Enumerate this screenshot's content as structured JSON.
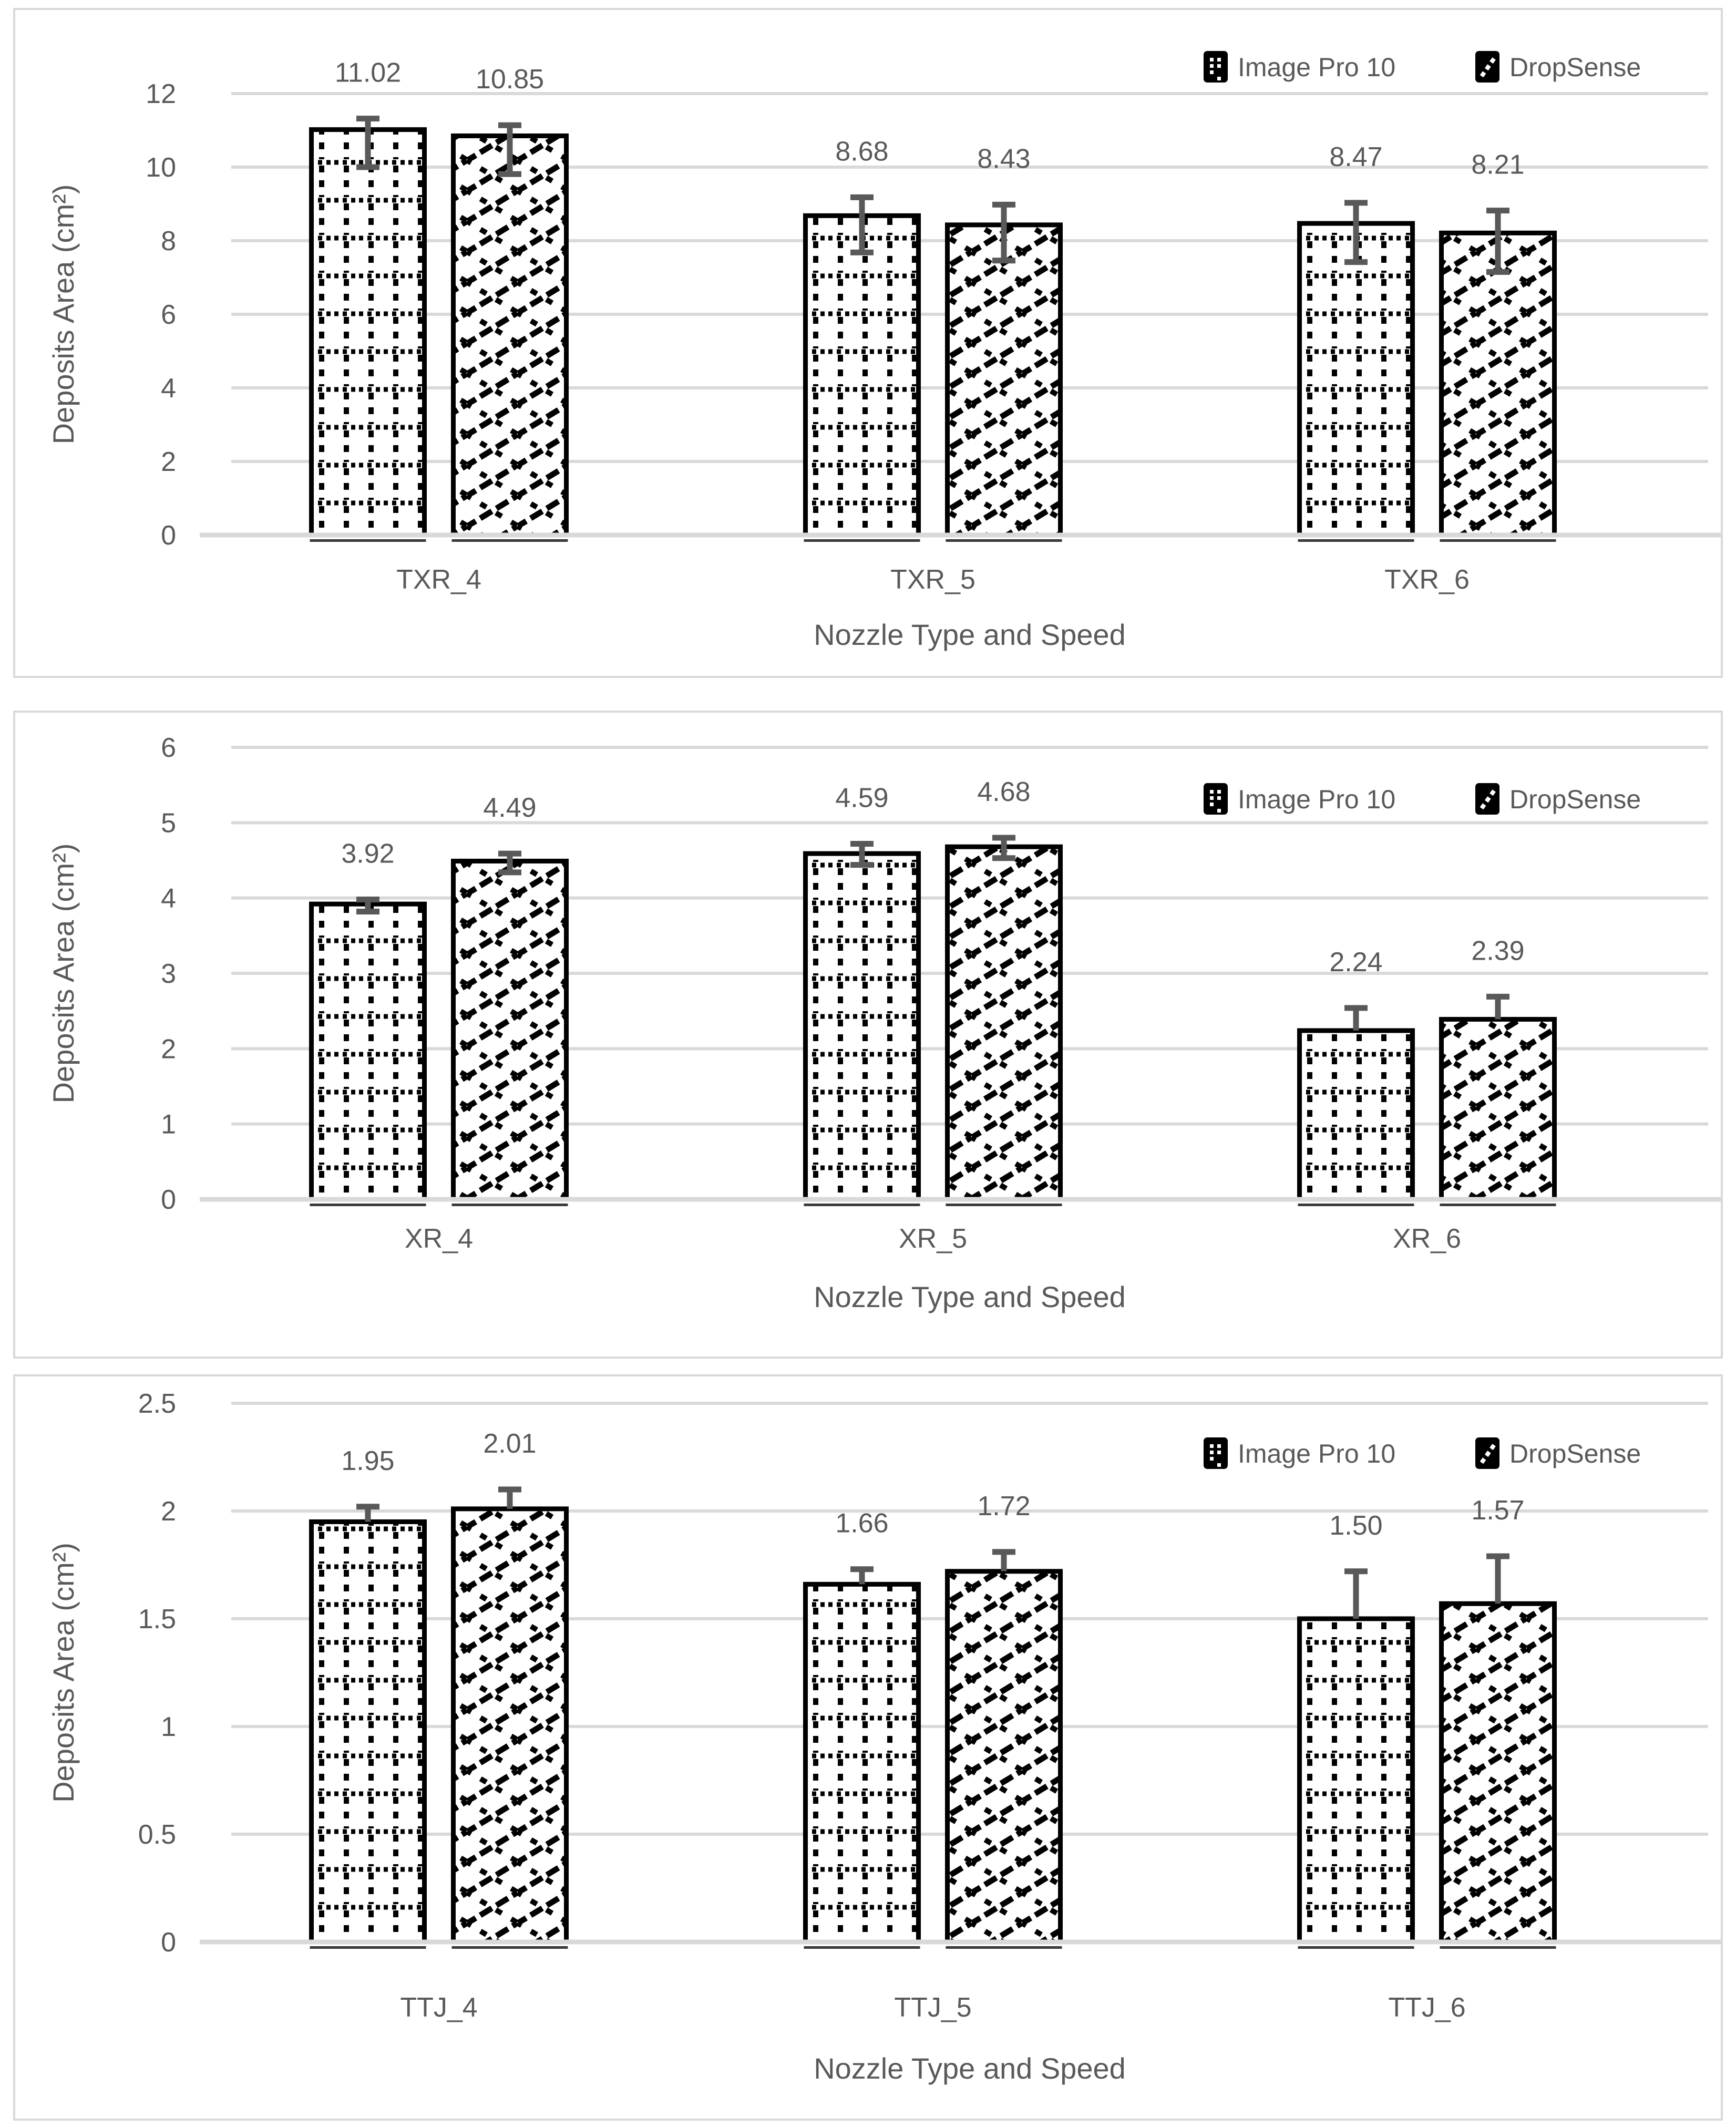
{
  "page": {
    "background": "#FFFFFF"
  },
  "colors": {
    "text": "#595959",
    "grid": "#D9D9D9",
    "axis_line": "#D9D9D9",
    "panel_border": "#D9D9D9",
    "bar_fill": "#FFFFFF",
    "bar_stroke": "#000000",
    "error_bar": "#595959"
  },
  "legend": {
    "items": [
      {
        "label": "Image Pro 10",
        "pattern": "dotted-grid-swatch"
      },
      {
        "label": "DropSense",
        "pattern": "diagonal-crosshatch-swatch"
      }
    ]
  },
  "chart_data": [
    {
      "type": "bar",
      "title": "",
      "xlabel": "Nozzle Type and Speed",
      "ylabel": "Deposits Area (cm²)",
      "categories": [
        "TXR_4",
        "TXR_5",
        "TXR_6"
      ],
      "ylim": [
        0,
        12
      ],
      "ytick_step": 2,
      "y_ticks": [
        "12",
        "10",
        "8",
        "6",
        "4",
        "2",
        "0"
      ],
      "grid": true,
      "legend_position": "top-right",
      "legend": [
        "Image Pro 10",
        "DropSense"
      ],
      "series": [
        {
          "name": "Image Pro 10",
          "pattern": "dotted-grid",
          "values": [
            11.02,
            8.68,
            8.47
          ],
          "labels": [
            "11.02",
            "8.68",
            "8.47"
          ],
          "err_up": [
            0.3,
            0.5,
            0.56
          ],
          "err_down": [
            1.02,
            1.0,
            1.05
          ]
        },
        {
          "name": "DropSense",
          "pattern": "diagonal-crosshatch",
          "values": [
            10.85,
            8.43,
            8.21
          ],
          "labels": [
            "10.85",
            "8.43",
            "8.21"
          ],
          "err_up": [
            0.29,
            0.55,
            0.61
          ],
          "err_down": [
            1.04,
            0.97,
            1.06
          ]
        }
      ]
    },
    {
      "type": "bar",
      "title": "",
      "xlabel": "Nozzle Type and Speed",
      "ylabel": "Deposits Area (cm²)",
      "categories": [
        "XR_4",
        "XR_5",
        "XR_6"
      ],
      "ylim": [
        0,
        6
      ],
      "ytick_step": 1,
      "y_ticks": [
        "6",
        "5",
        "4",
        "3",
        "2",
        "1",
        "0"
      ],
      "grid": true,
      "legend_position": "top-right",
      "legend": [
        "Image Pro 10",
        "DropSense"
      ],
      "series": [
        {
          "name": "Image Pro 10",
          "pattern": "dotted-grid",
          "values": [
            3.92,
            4.59,
            2.24
          ],
          "labels": [
            "3.92",
            "4.59",
            "2.24"
          ],
          "err_up": [
            0.06,
            0.13,
            0.3
          ],
          "err_down": [
            0.1,
            0.15,
            0
          ]
        },
        {
          "name": "DropSense",
          "pattern": "diagonal-crosshatch",
          "values": [
            4.49,
            4.68,
            2.39
          ],
          "labels": [
            "4.49",
            "4.68",
            "2.39"
          ],
          "err_up": [
            0.1,
            0.12,
            0.3
          ],
          "err_down": [
            0.15,
            0.15,
            0
          ]
        }
      ]
    },
    {
      "type": "bar",
      "title": "",
      "xlabel": "Nozzle Type and Speed",
      "ylabel": "Deposits Area (cm²)",
      "categories": [
        "TTJ_4",
        "TTJ_5",
        "TTJ_6"
      ],
      "ylim": [
        0,
        2.5
      ],
      "ytick_step": 0.5,
      "y_ticks": [
        "2.5",
        "2",
        "1.5",
        "1",
        "0.5",
        "0"
      ],
      "grid": true,
      "legend_position": "top-right",
      "legend": [
        "Image Pro 10",
        "DropSense"
      ],
      "series": [
        {
          "name": "Image Pro 10",
          "pattern": "dotted-grid",
          "values": [
            1.95,
            1.66,
            1.5
          ],
          "labels": [
            "1.95",
            "1.66",
            "1.50"
          ],
          "err_up": [
            0.07,
            0.07,
            0.22
          ],
          "err_down": [
            0,
            0,
            0
          ]
        },
        {
          "name": "DropSense",
          "pattern": "diagonal-crosshatch",
          "values": [
            2.01,
            1.72,
            1.57
          ],
          "labels": [
            "2.01",
            "1.72",
            "1.57"
          ],
          "err_up": [
            0.09,
            0.09,
            0.22
          ],
          "err_down": [
            0,
            0,
            0
          ]
        }
      ]
    }
  ]
}
